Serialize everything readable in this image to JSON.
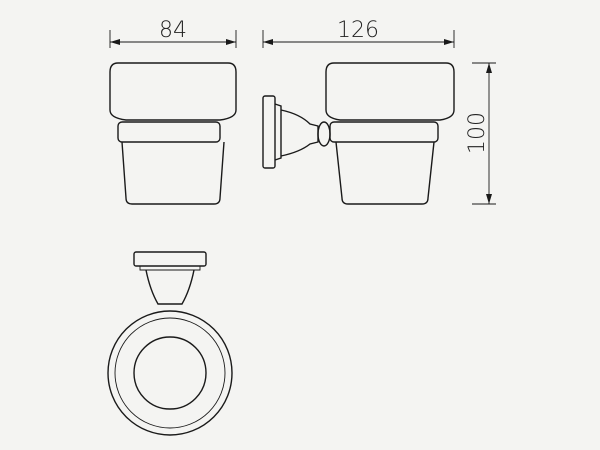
{
  "diagram": {
    "views": [
      "front-view",
      "side-view",
      "top-view"
    ],
    "dimensions": [
      {
        "id": "width",
        "label": "84"
      },
      {
        "id": "depth",
        "label": "126"
      },
      {
        "id": "height",
        "label": "100"
      }
    ]
  }
}
